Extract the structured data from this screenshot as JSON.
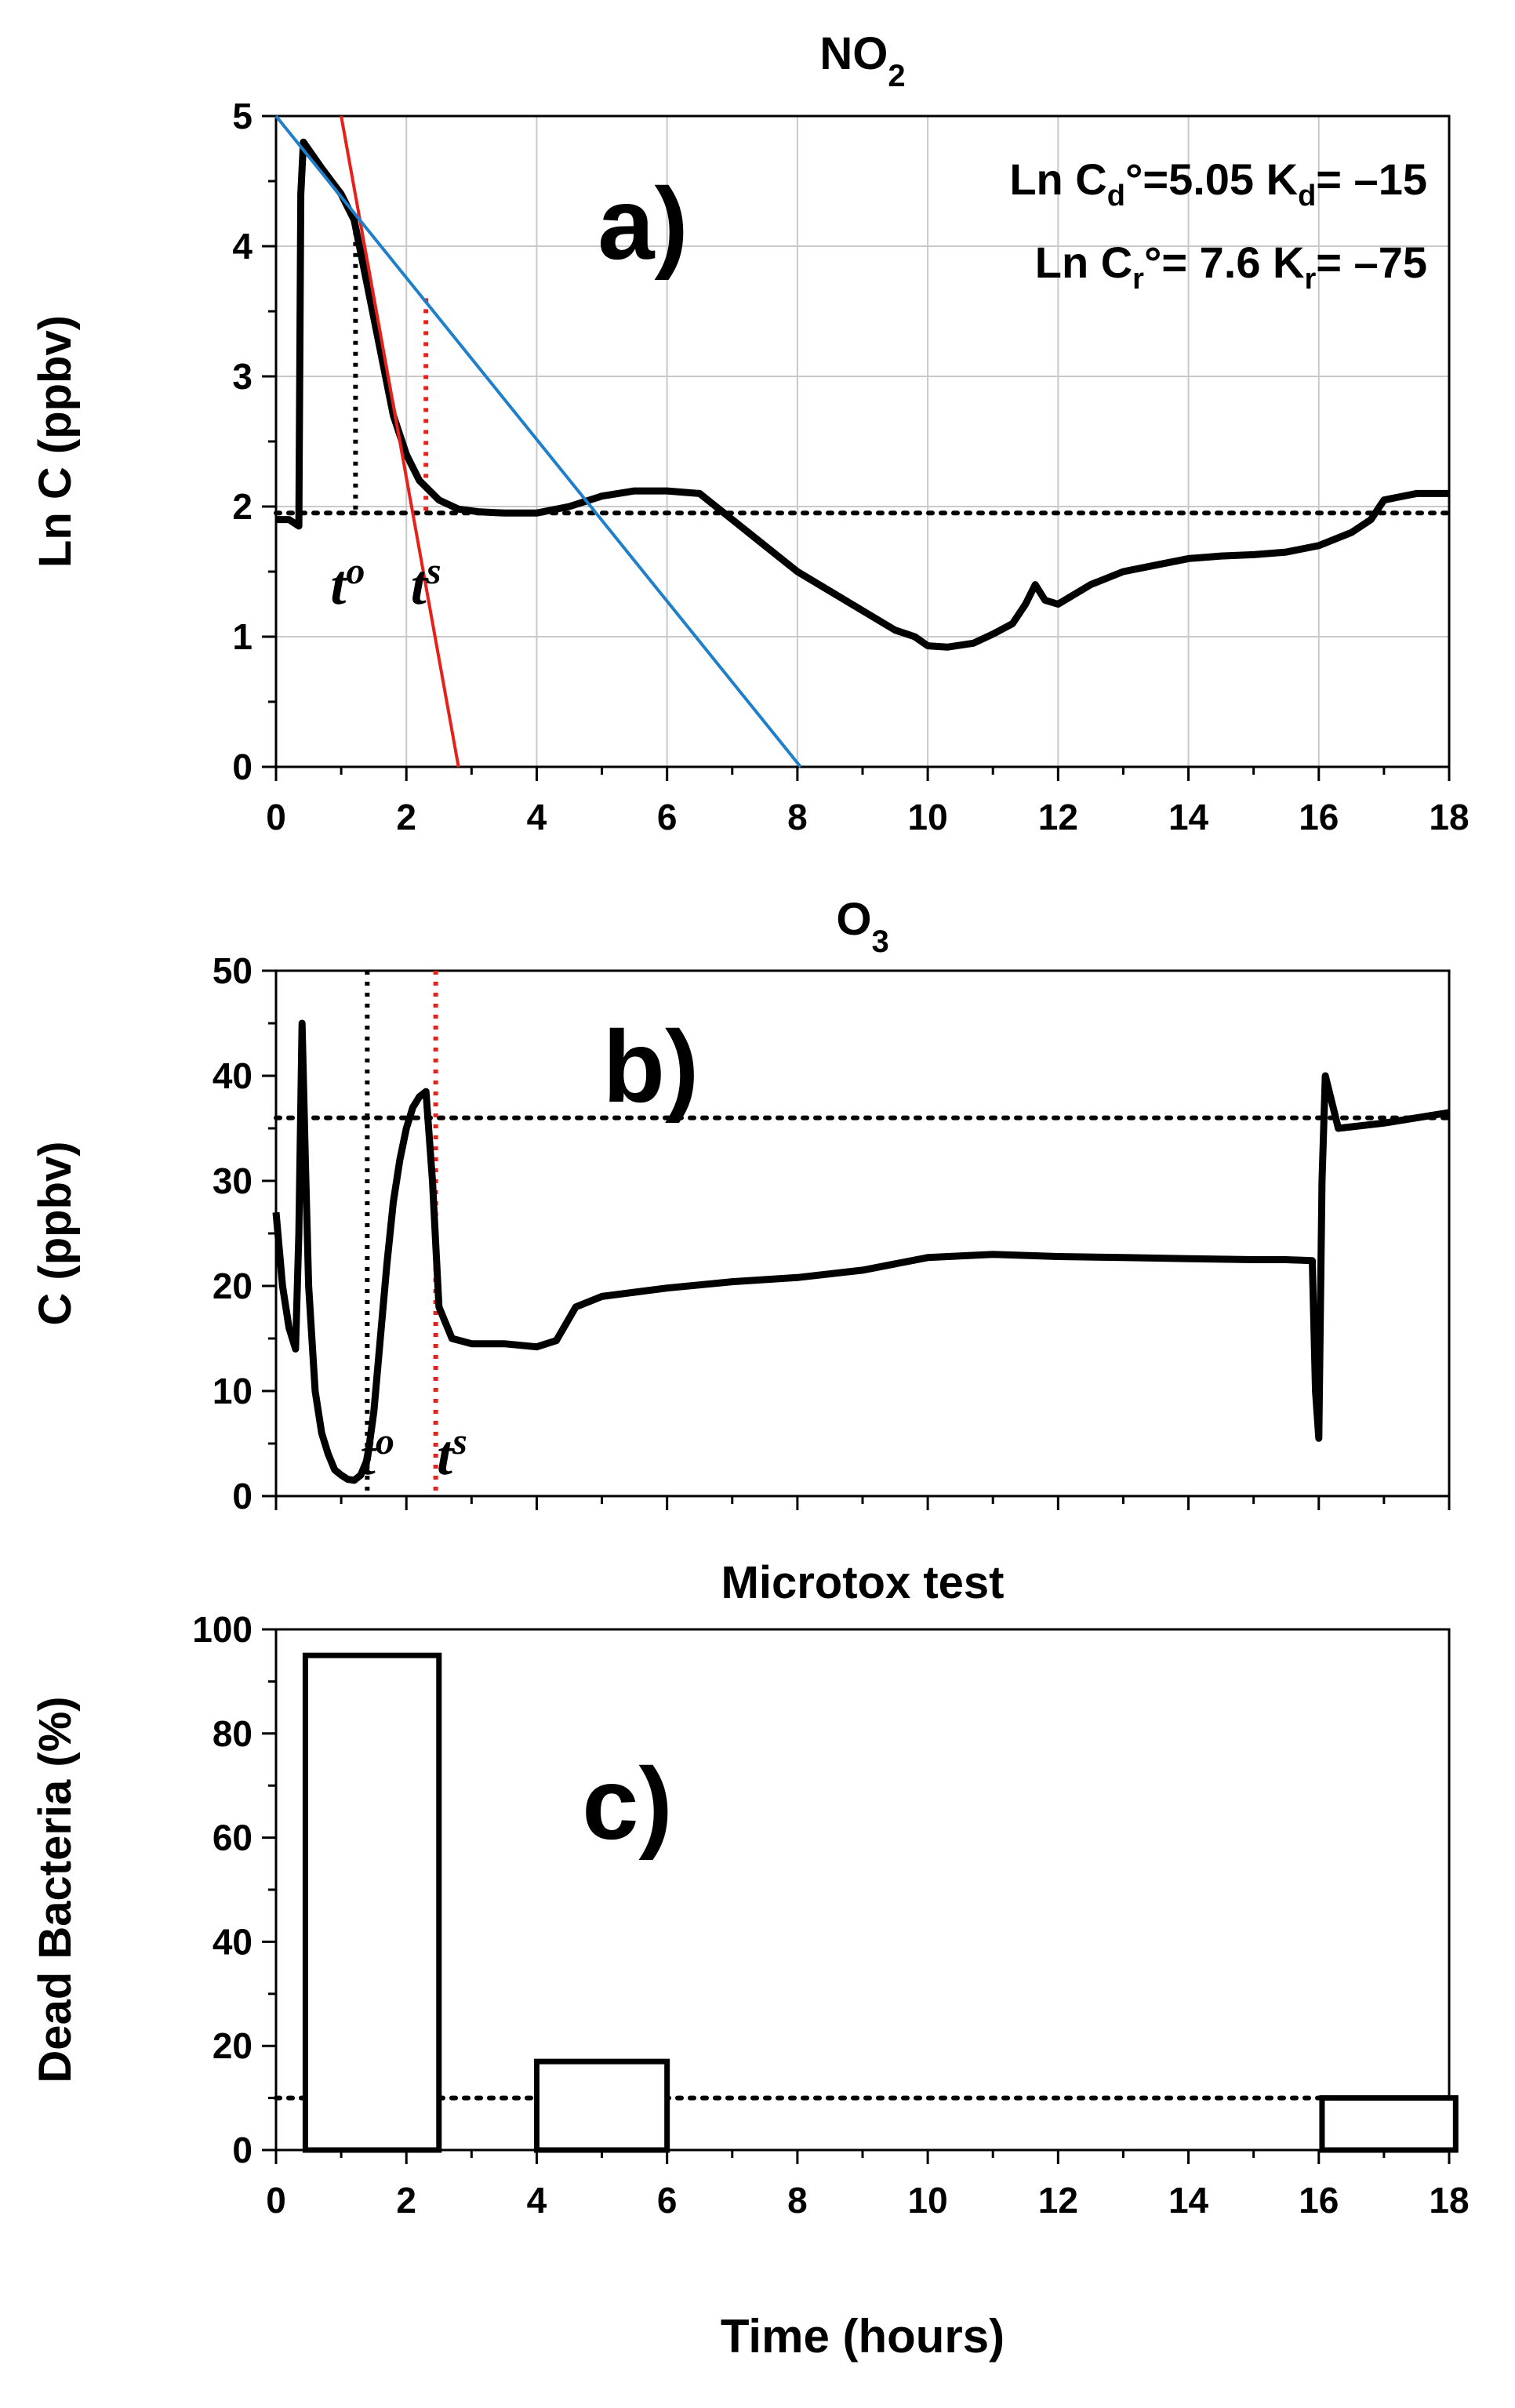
{
  "chart_data": [
    {
      "type": "line",
      "title": "NO",
      "title_sub": "2",
      "panel_label": "a)",
      "ylabel": "Ln C (ppbv)",
      "xlim": [
        0,
        18
      ],
      "ylim": [
        0,
        5
      ],
      "x_ticks": [
        "0",
        "2",
        "4",
        "6",
        "8",
        "10",
        "12",
        "14",
        "16",
        "18"
      ],
      "y_ticks": [
        "0",
        "1",
        "2",
        "3",
        "4",
        "5"
      ],
      "grid": true,
      "annotations": [
        {
          "pre": "Ln C",
          "sub": "d",
          "post": "°=5.05",
          "pre2": "K",
          "sub2": "d",
          "post2": "= –15"
        },
        {
          "pre": "Ln C",
          "sub": "r",
          "post": "°= 7.6",
          "pre2": "K",
          "sub2": "r",
          "post2": "= –75"
        }
      ],
      "t_labels": [
        {
          "base": "t",
          "sup": "o",
          "x": 1.1
        },
        {
          "base": "t",
          "sup": "s",
          "x": 2.3
        }
      ],
      "series": [
        {
          "kind": "measured",
          "color": "#000000",
          "x": [
            0,
            0.2,
            0.35,
            0.38,
            0.42,
            0.7,
            1.0,
            1.2,
            1.4,
            1.6,
            1.8,
            2.0,
            2.2,
            2.5,
            2.8,
            3.1,
            3.5,
            4.0,
            4.5,
            5.0,
            5.5,
            6.0,
            6.5,
            7.0,
            7.5,
            8.0,
            8.5,
            9.0,
            9.5,
            9.8,
            10.0,
            10.3,
            10.7,
            11.0,
            11.3,
            11.5,
            11.65,
            11.8,
            12.0,
            12.5,
            13.0,
            13.5,
            14.0,
            14.5,
            15.0,
            15.5,
            16.0,
            16.5,
            16.8,
            17.0,
            17.5,
            18.0
          ],
          "y": [
            1.9,
            1.9,
            1.85,
            4.4,
            4.8,
            4.6,
            4.4,
            4.2,
            3.7,
            3.2,
            2.7,
            2.4,
            2.2,
            2.05,
            1.98,
            1.96,
            1.95,
            1.95,
            2.0,
            2.08,
            2.12,
            2.12,
            2.1,
            1.9,
            1.7,
            1.5,
            1.35,
            1.2,
            1.05,
            1.0,
            0.93,
            0.92,
            0.95,
            1.02,
            1.1,
            1.25,
            1.4,
            1.28,
            1.25,
            1.4,
            1.5,
            1.55,
            1.6,
            1.62,
            1.63,
            1.65,
            1.7,
            1.8,
            1.9,
            2.05,
            2.1,
            2.1
          ]
        },
        {
          "kind": "fit",
          "color": "#e8201a",
          "x": [
            1.0,
            2.8
          ],
          "y": [
            5.0,
            0.0
          ]
        },
        {
          "kind": "fit",
          "color": "#1f7fc9",
          "x": [
            0.0,
            8.05
          ],
          "y": [
            5.0,
            0.0
          ]
        }
      ],
      "baseline_y": 1.95,
      "vlines": [
        {
          "x": 1.22,
          "y_top": 4.2,
          "color": "#000000"
        },
        {
          "x": 2.3,
          "y_top": 3.6,
          "color": "#e8201a"
        }
      ]
    },
    {
      "type": "line",
      "title": "O",
      "title_sub": "3",
      "panel_label": "b)",
      "ylabel": "C (ppbv)",
      "xlim": [
        0,
        18
      ],
      "ylim": [
        0,
        50
      ],
      "x_ticks": [],
      "y_ticks": [
        "0",
        "10",
        "20",
        "30",
        "40",
        "50"
      ],
      "grid": false,
      "t_labels": [
        {
          "base": "t",
          "sup": "o",
          "x": 1.55
        },
        {
          "base": "t",
          "sup": "s",
          "x": 2.7
        }
      ],
      "series": [
        {
          "kind": "measured",
          "color": "#000000",
          "x": [
            0,
            0.1,
            0.2,
            0.3,
            0.35,
            0.4,
            0.45,
            0.5,
            0.6,
            0.7,
            0.8,
            0.9,
            1.0,
            1.1,
            1.2,
            1.3,
            1.4,
            1.5,
            1.6,
            1.7,
            1.8,
            1.9,
            2.0,
            2.1,
            2.2,
            2.3,
            2.4,
            2.5,
            2.7,
            3.0,
            3.5,
            4.0,
            4.3,
            4.6,
            5.0,
            6.0,
            7.0,
            8.0,
            9.0,
            10.0,
            11.0,
            12.0,
            13.0,
            14.0,
            15.0,
            15.5,
            15.9,
            15.95,
            16.0,
            16.05,
            16.1,
            16.3,
            17.0,
            18.0
          ],
          "y": [
            27,
            20,
            16,
            14,
            25,
            45,
            32,
            20,
            10,
            6,
            4,
            2.5,
            2,
            1.6,
            1.5,
            2,
            3.5,
            8,
            15,
            22,
            28,
            32,
            35,
            37,
            38,
            38.5,
            30,
            18,
            15,
            14.5,
            14.5,
            14.2,
            14.8,
            18,
            19,
            19.8,
            20.4,
            20.8,
            21.5,
            22.7,
            23,
            22.8,
            22.7,
            22.6,
            22.5,
            22.5,
            22.4,
            10,
            5.5,
            30,
            40,
            35,
            35.5,
            36.5
          ]
        }
      ],
      "baseline_y": 36,
      "vlines": [
        {
          "x": 1.4,
          "y_top": 50,
          "color": "#000000"
        },
        {
          "x": 2.45,
          "y_top": 50,
          "color": "#e8201a"
        }
      ]
    },
    {
      "type": "bar",
      "title": "Microtox  test",
      "panel_label": "c)",
      "ylabel": "Dead Bacteria (%)",
      "xlabel": "Time (hours)",
      "xlim": [
        0,
        18
      ],
      "ylim": [
        0,
        100
      ],
      "x_ticks": [
        "0",
        "2",
        "4",
        "6",
        "8",
        "10",
        "12",
        "14",
        "16",
        "18"
      ],
      "y_ticks": [
        "0",
        "20",
        "40",
        "60",
        "80",
        "100"
      ],
      "grid": false,
      "bars": [
        {
          "x0": 0.45,
          "x1": 2.5,
          "value": 95
        },
        {
          "x0": 4.0,
          "x1": 6.0,
          "value": 17
        },
        {
          "x0": 16.05,
          "x1": 18.1,
          "value": 10
        }
      ],
      "baseline_y": 10
    }
  ]
}
